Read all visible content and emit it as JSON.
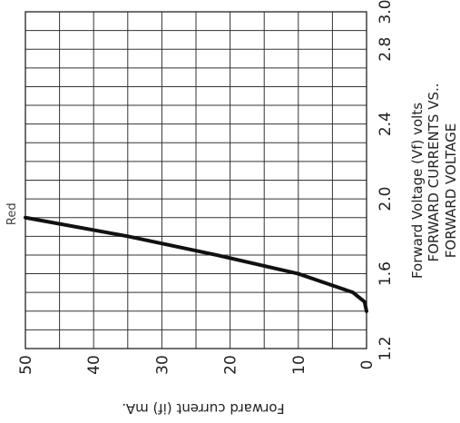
{
  "chart_data": {
    "type": "line",
    "title": "FORWARD CURRENTS VS. FORWARD VOLTAGE",
    "title_lines": [
      "FORWARD CURRENTS VS..",
      "FORWARD VOLTAGE"
    ],
    "xlabel": "Forward Voltage (Vf) volts",
    "ylabel": "Forward current (if) mA.",
    "x_ticks": [
      "1.2",
      "1.6",
      "2.0",
      "2.4",
      "2.8",
      "3.0"
    ],
    "y_ticks": [
      "50",
      "40",
      "30",
      "20",
      "10",
      "0"
    ],
    "xlim": [
      1.2,
      3.0
    ],
    "ylim": [
      0,
      50
    ],
    "orientation": "rotated 90° clockwise",
    "grid": true,
    "series": [
      {
        "name": "Red",
        "x": [
          1.4,
          1.45,
          1.5,
          1.55,
          1.6,
          1.7,
          1.8,
          1.9
        ],
        "y": [
          0,
          0.3,
          2,
          6,
          10,
          22,
          35,
          50
        ]
      }
    ]
  }
}
